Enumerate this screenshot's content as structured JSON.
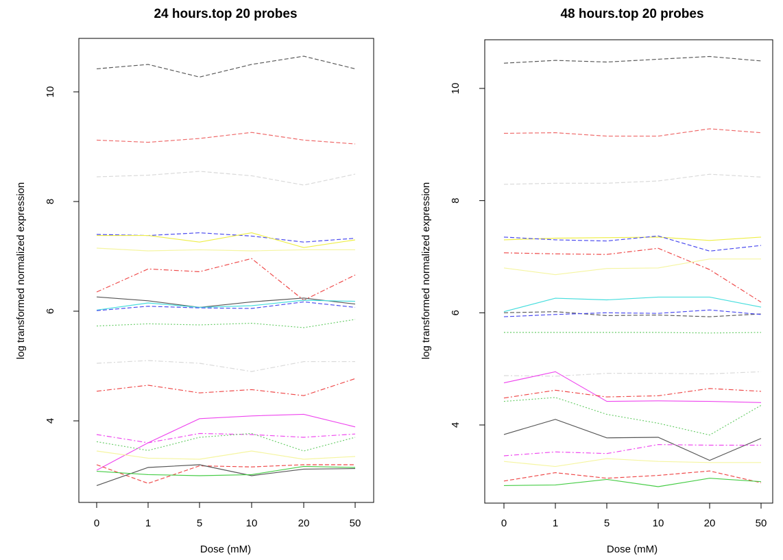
{
  "chart_data": [
    {
      "type": "line",
      "title": "24 hours.top 20 probes",
      "xlabel": "Dose (mM)",
      "ylabel": "log transformed normalized expression",
      "categories": [
        "0",
        "1",
        "5",
        "10",
        "20",
        "50"
      ],
      "yticks": [
        "4",
        "6",
        "8",
        "10"
      ],
      "ylim": [
        2.7,
        10.95
      ],
      "grid": false,
      "series": [
        {
          "color": "#555555",
          "dash": "dashed",
          "values": [
            10.42,
            10.5,
            10.27,
            10.5,
            10.65,
            10.42
          ]
        },
        {
          "color": "#ee6666",
          "dash": "dashed",
          "values": [
            9.12,
            9.08,
            9.15,
            9.26,
            9.12,
            9.05
          ]
        },
        {
          "color": "#d8d8d8",
          "dash": "dashed",
          "values": [
            8.45,
            8.48,
            8.55,
            8.47,
            8.3,
            8.5
          ]
        },
        {
          "color": "#4444ee",
          "dash": "dashed",
          "values": [
            7.4,
            7.38,
            7.43,
            7.37,
            7.26,
            7.33
          ]
        },
        {
          "color": "#eeee44",
          "dash": "solid",
          "values": [
            7.38,
            7.38,
            7.26,
            7.43,
            7.16,
            7.3
          ]
        },
        {
          "color": "#f5f5a0",
          "dash": "solid",
          "values": [
            7.15,
            7.1,
            7.12,
            7.1,
            7.12,
            7.12
          ]
        },
        {
          "color": "#ee4444",
          "dash": "dashdot",
          "values": [
            6.35,
            6.77,
            6.72,
            6.96,
            6.2,
            6.66
          ]
        },
        {
          "color": "#555555",
          "dash": "solid",
          "values": [
            6.26,
            6.19,
            6.07,
            6.17,
            6.24,
            6.13
          ]
        },
        {
          "color": "#44dddd",
          "dash": "solid",
          "values": [
            6.02,
            6.15,
            6.07,
            6.1,
            6.2,
            6.18
          ]
        },
        {
          "color": "#4444ee",
          "dash": "dashed",
          "values": [
            6.01,
            6.09,
            6.06,
            6.05,
            6.17,
            6.07
          ]
        },
        {
          "color": "#66cc66",
          "dash": "dotted",
          "values": [
            5.73,
            5.77,
            5.75,
            5.78,
            5.7,
            5.85
          ]
        },
        {
          "color": "#d8d8d8",
          "dash": "dashdot",
          "values": [
            5.05,
            5.1,
            5.05,
            4.9,
            5.08,
            5.08
          ]
        },
        {
          "color": "#ee4444",
          "dash": "dashdot",
          "values": [
            4.54,
            4.65,
            4.51,
            4.57,
            4.46,
            4.77
          ]
        },
        {
          "color": "#ee44ee",
          "dash": "solid",
          "values": [
            3.1,
            3.6,
            4.04,
            4.09,
            4.12,
            3.89
          ]
        },
        {
          "color": "#ee44ee",
          "dash": "dashdot",
          "values": [
            3.75,
            3.6,
            3.77,
            3.75,
            3.7,
            3.76
          ]
        },
        {
          "color": "#66cc66",
          "dash": "dotted",
          "values": [
            3.62,
            3.46,
            3.7,
            3.77,
            3.45,
            3.7
          ]
        },
        {
          "color": "#f5f5a0",
          "dash": "solid",
          "values": [
            3.45,
            3.32,
            3.3,
            3.45,
            3.3,
            3.35
          ]
        },
        {
          "color": "#ee4444",
          "dash": "dashed",
          "values": [
            3.2,
            2.86,
            3.18,
            3.16,
            3.2,
            3.2
          ]
        },
        {
          "color": "#555555",
          "dash": "solid",
          "values": [
            2.82,
            3.15,
            3.2,
            3.0,
            3.12,
            3.13
          ]
        },
        {
          "color": "#44cc44",
          "dash": "solid",
          "values": [
            3.08,
            3.02,
            3.0,
            3.02,
            3.17,
            3.15
          ]
        }
      ]
    },
    {
      "type": "line",
      "title": "48 hours.top 20 probes",
      "xlabel": "Dose (mM)",
      "ylabel": "log transformed normalized expression",
      "categories": [
        "0",
        "1",
        "5",
        "10",
        "20",
        "50"
      ],
      "yticks": [
        "4",
        "6",
        "8",
        "10"
      ],
      "ylim": [
        2.6,
        10.9
      ],
      "grid": false,
      "series": [
        {
          "color": "#555555",
          "dash": "dashed",
          "values": [
            10.45,
            10.5,
            10.47,
            10.52,
            10.57,
            10.49
          ]
        },
        {
          "color": "#ee6666",
          "dash": "dashed",
          "values": [
            9.2,
            9.21,
            9.15,
            9.15,
            9.28,
            9.21
          ]
        },
        {
          "color": "#d8d8d8",
          "dash": "dashed",
          "values": [
            8.29,
            8.31,
            8.31,
            8.35,
            8.47,
            8.42
          ]
        },
        {
          "color": "#eeee44",
          "dash": "solid",
          "values": [
            7.3,
            7.33,
            7.34,
            7.35,
            7.29,
            7.35
          ]
        },
        {
          "color": "#4444ee",
          "dash": "dashed",
          "values": [
            7.35,
            7.3,
            7.28,
            7.37,
            7.1,
            7.2
          ]
        },
        {
          "color": "#ee4444",
          "dash": "dashdot",
          "values": [
            7.07,
            7.05,
            7.04,
            7.15,
            6.77,
            6.19
          ]
        },
        {
          "color": "#f5f5a0",
          "dash": "solid",
          "values": [
            6.8,
            6.68,
            6.79,
            6.8,
            6.96,
            6.96
          ]
        },
        {
          "color": "#44dddd",
          "dash": "solid",
          "values": [
            6.02,
            6.26,
            6.23,
            6.28,
            6.28,
            6.1
          ]
        },
        {
          "color": "#555555",
          "dash": "dashed",
          "values": [
            6.0,
            6.02,
            5.95,
            5.96,
            5.93,
            5.98
          ]
        },
        {
          "color": "#4444ee",
          "dash": "dashed",
          "values": [
            5.93,
            5.97,
            6.0,
            5.99,
            6.05,
            5.97
          ]
        },
        {
          "color": "#66cc66",
          "dash": "dotted",
          "values": [
            5.65,
            5.65,
            5.65,
            5.65,
            5.64,
            5.65
          ]
        },
        {
          "color": "#d8d8d8",
          "dash": "dashdot",
          "values": [
            4.88,
            4.87,
            4.92,
            4.92,
            4.91,
            4.95
          ]
        },
        {
          "color": "#ee44ee",
          "dash": "solid",
          "values": [
            4.75,
            4.95,
            4.42,
            4.43,
            4.42,
            4.4
          ]
        },
        {
          "color": "#ee4444",
          "dash": "dashdot",
          "values": [
            4.48,
            4.62,
            4.5,
            4.52,
            4.65,
            4.6
          ]
        },
        {
          "color": "#66cc66",
          "dash": "dotted",
          "values": [
            4.42,
            4.49,
            4.19,
            4.03,
            3.82,
            4.35
          ]
        },
        {
          "color": "#555555",
          "dash": "solid",
          "values": [
            3.83,
            4.1,
            3.77,
            3.78,
            3.37,
            3.76
          ]
        },
        {
          "color": "#ee44ee",
          "dash": "dashdot",
          "values": [
            3.45,
            3.52,
            3.49,
            3.65,
            3.64,
            3.64
          ]
        },
        {
          "color": "#f5f5a0",
          "dash": "solid",
          "values": [
            3.35,
            3.26,
            3.4,
            3.35,
            3.33,
            3.33
          ]
        },
        {
          "color": "#ee4444",
          "dash": "dashed",
          "values": [
            3.0,
            3.15,
            3.05,
            3.1,
            3.18,
            2.97
          ]
        },
        {
          "color": "#44cc44",
          "dash": "solid",
          "values": [
            2.92,
            2.93,
            3.03,
            2.9,
            3.05,
            2.99
          ]
        }
      ]
    }
  ]
}
